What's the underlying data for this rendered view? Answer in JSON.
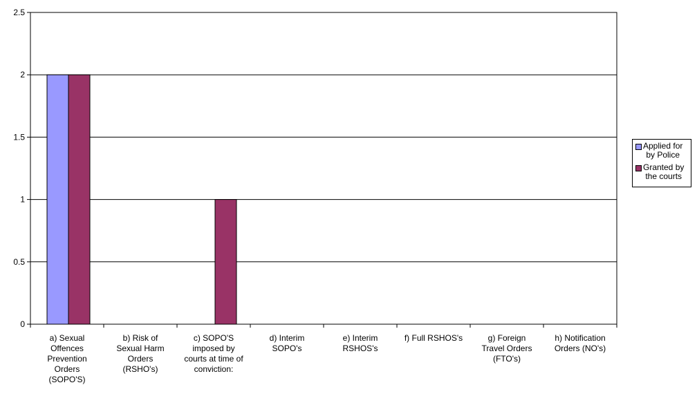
{
  "chart_data": {
    "type": "bar",
    "title": "",
    "xlabel": "",
    "ylabel": "",
    "ylim": [
      0,
      2.5
    ],
    "yticks": [
      "0",
      "0.5",
      "1",
      "1.5",
      "2",
      "2.5"
    ],
    "grid": true,
    "legend_position": "right",
    "categories": [
      "a) Sexual\nOffences\nPrevention\nOrders\n(SOPO'S)",
      "b) Risk of\nSexual Harm\nOrders\n(RSHO's)",
      "c) SOPO'S\nimposed by\ncourts at time of\nconviction:",
      "d) Interim\nSOPO's",
      "e) Interim\nRSHOS's",
      "f) Full RSHOS's",
      "g) Foreign\nTravel Orders\n(FTO's)",
      "h) Notification\nOrders (NO's)"
    ],
    "series": [
      {
        "name": "Applied for by Police",
        "legend_label": "Applied for\nby Police",
        "color": "#9999ff",
        "values": [
          2,
          0,
          0,
          0,
          0,
          0,
          0,
          0
        ]
      },
      {
        "name": "Granted by the courts",
        "legend_label": "Granted by\nthe courts",
        "color": "#993366",
        "values": [
          2,
          0,
          1,
          0,
          0,
          0,
          0,
          0
        ]
      }
    ]
  }
}
